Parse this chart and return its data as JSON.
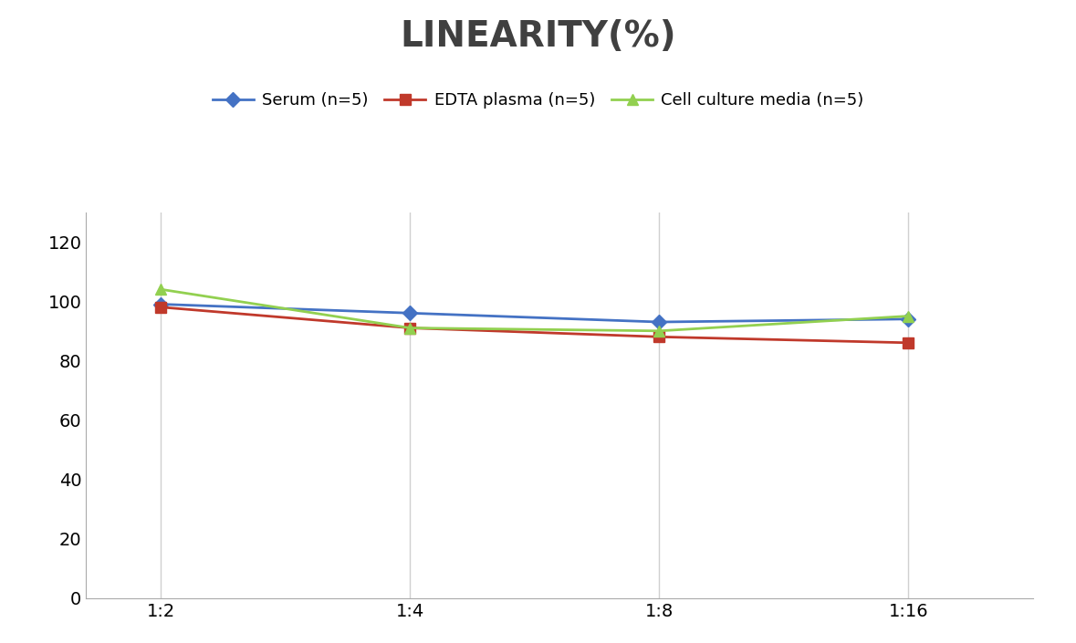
{
  "title": "LINEARITY(%)",
  "title_fontsize": 28,
  "title_fontweight": "bold",
  "title_color": "#404040",
  "x_labels": [
    "1:2",
    "1:4",
    "1:8",
    "1:16"
  ],
  "x_positions": [
    0,
    1,
    2,
    3
  ],
  "series": [
    {
      "label": "Serum (n=5)",
      "values": [
        99,
        96,
        93,
        94
      ],
      "color": "#4472C4",
      "marker": "D",
      "markersize": 8
    },
    {
      "label": "EDTA plasma (n=5)",
      "values": [
        98,
        91,
        88,
        86
      ],
      "color": "#C0392B",
      "marker": "s",
      "markersize": 8
    },
    {
      "label": "Cell culture media (n=5)",
      "values": [
        104,
        91,
        90,
        95
      ],
      "color": "#92D050",
      "marker": "^",
      "markersize": 9
    }
  ],
  "ylim": [
    0,
    130
  ],
  "yticks": [
    0,
    20,
    40,
    60,
    80,
    100,
    120
  ],
  "grid_color": "#D0D0D0",
  "background_color": "#FFFFFF",
  "legend_fontsize": 13,
  "tick_fontsize": 14,
  "linewidth": 2.0
}
